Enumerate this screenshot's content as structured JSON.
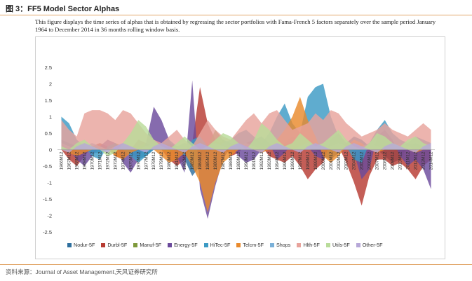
{
  "figure": {
    "label": "图 3：FF5 Model Sector Alphas",
    "description": "This figure displays the time series of alphas that is obtained by regressing the sector portfolios with Fama-French 5 factors separately over the sample period January 1964 to December 2014 in 36 months rolling window basis.",
    "source": "资料来源：Journal of Asset Management,天风证券研究所"
  },
  "chart_data": {
    "type": "area",
    "title": "",
    "xlabel": "",
    "ylabel": "",
    "ylim": [
      -2.5,
      2.5
    ],
    "yticks": [
      "2.5",
      "2",
      "1.5",
      "1",
      "0.5",
      "0",
      "-0.5",
      "-1",
      "-1.5",
      "-2",
      "-2.5"
    ],
    "x_tick_labels": [
      "1966M12",
      "1967M12",
      "1968M12",
      "1969M12",
      "1970M12",
      "1971M12",
      "1972M12",
      "1973M12",
      "1974M12",
      "1975M12",
      "1976M12",
      "1977M12",
      "1978M12",
      "1979M12",
      "1980M12",
      "1981M12",
      "1982M12",
      "1983M12",
      "1984M12",
      "1985M12",
      "1986M12",
      "1987M12",
      "1988M12",
      "1989M12",
      "1990M12",
      "1991M12",
      "1992M12",
      "1993M12",
      "1994M12",
      "1995M12",
      "1996M12",
      "1997M12",
      "1998M12",
      "1999M12",
      "2000M12",
      "2001M12",
      "2002M12",
      "2003M12",
      "2004M12",
      "2005M12",
      "2006M12",
      "2007M12",
      "2008M12",
      "2009M12",
      "2010M12",
      "2011M12",
      "2012M12",
      "2013M12",
      "2014M12"
    ],
    "legend_position": "bottom",
    "series": [
      {
        "name": "Nodur-5F",
        "color": "#2e6f9e",
        "values": [
          0.3,
          0.2,
          0.1,
          0.0,
          -0.1,
          -0.1,
          0.0,
          0.1,
          0.0,
          -0.1,
          -0.3,
          -0.2,
          0.0,
          0.1,
          0.2,
          0.1,
          -0.3,
          -0.8,
          -0.5,
          -0.1,
          0.1,
          0.3,
          0.2,
          0.1,
          0.0,
          0.3,
          0.4,
          0.2,
          0.0,
          0.2,
          0.4,
          0.3,
          0.2,
          0.0,
          -0.2,
          -0.3,
          -0.1,
          0.2,
          0.4,
          0.3,
          0.1,
          0.0,
          -0.2,
          -0.4,
          -0.3,
          0.1,
          0.2,
          0.1,
          -0.1
        ]
      },
      {
        "name": "Durbl-5F",
        "color": "#b73b32",
        "values": [
          0.0,
          -0.3,
          -0.5,
          -0.2,
          0.1,
          0.2,
          0.1,
          -0.2,
          -0.3,
          0.0,
          0.3,
          0.2,
          0.1,
          0.0,
          -0.3,
          -0.5,
          -0.3,
          0.2,
          1.9,
          0.8,
          0.3,
          0.1,
          -0.2,
          -0.1,
          0.2,
          0.3,
          0.1,
          -0.2,
          -0.3,
          -0.4,
          -0.2,
          -0.5,
          -0.9,
          -0.6,
          -0.4,
          0.3,
          0.1,
          -0.4,
          -1.0,
          -1.7,
          -0.8,
          -0.3,
          -0.3,
          -0.5,
          -0.4,
          -0.6,
          -0.9,
          -0.5,
          -0.3
        ]
      },
      {
        "name": "Manuf-5F",
        "color": "#7f9a3c",
        "values": [
          0.1,
          0.0,
          0.1,
          0.2,
          0.1,
          0.0,
          0.1,
          0.2,
          0.1,
          0.0,
          0.1,
          0.2,
          0.1,
          0.0,
          -0.1,
          0.1,
          0.2,
          0.1,
          0.0,
          0.1,
          0.6,
          0.3,
          0.1,
          0.0,
          0.1,
          0.2,
          0.1,
          0.0,
          0.1,
          0.2,
          0.1,
          0.0,
          0.1,
          0.2,
          0.1,
          0.0,
          0.1,
          0.2,
          0.1,
          0.0,
          0.1,
          0.2,
          0.1,
          0.0,
          0.1,
          0.2,
          0.1,
          0.0,
          0.1
        ]
      },
      {
        "name": "Energy-5F",
        "color": "#6b4a9c",
        "values": [
          0.2,
          0.0,
          -0.3,
          -0.5,
          -0.2,
          0.1,
          0.3,
          0.2,
          -0.4,
          -0.7,
          -0.3,
          0.2,
          1.3,
          0.9,
          0.3,
          -0.2,
          -0.7,
          2.1,
          -1.2,
          -2.1,
          -1.1,
          -0.3,
          0.1,
          -0.2,
          -0.4,
          -0.3,
          0.0,
          0.2,
          -0.3,
          -0.1,
          0.2,
          0.4,
          0.1,
          -0.2,
          -0.3,
          0.3,
          0.5,
          0.2,
          -0.1,
          -0.9,
          -0.6,
          0.4,
          0.6,
          0.3,
          -0.2,
          -0.5,
          -0.3,
          -0.6,
          -1.2
        ]
      },
      {
        "name": "HiTec-5F",
        "color": "#3c9ac4",
        "values": [
          1.0,
          0.8,
          0.3,
          0.1,
          -0.2,
          -0.3,
          0.1,
          0.2,
          0.0,
          -0.2,
          -0.4,
          -0.2,
          0.0,
          0.2,
          0.3,
          0.1,
          -0.2,
          0.3,
          0.4,
          0.1,
          0.0,
          0.2,
          0.3,
          0.5,
          0.6,
          0.4,
          0.2,
          0.5,
          1.0,
          1.4,
          0.8,
          0.5,
          1.6,
          1.9,
          2.0,
          1.0,
          0.4,
          0.1,
          -0.3,
          -0.4,
          0.2,
          0.6,
          0.9,
          0.5,
          0.3,
          0.2,
          0.4,
          0.3,
          0.2
        ]
      },
      {
        "name": "Telcm-5F",
        "color": "#e98a2c",
        "values": [
          0.0,
          -0.1,
          -0.2,
          -0.1,
          0.0,
          0.1,
          0.0,
          -0.2,
          -0.3,
          -0.1,
          0.0,
          0.1,
          0.0,
          -0.2,
          -0.4,
          -0.3,
          -0.1,
          -0.5,
          -1.0,
          -1.9,
          -1.0,
          -0.4,
          -0.2,
          0.0,
          0.1,
          0.0,
          -0.1,
          0.0,
          0.3,
          0.6,
          1.0,
          1.6,
          0.9,
          0.4,
          -0.2,
          -0.4,
          -0.2,
          0.1,
          0.3,
          0.2,
          0.0,
          -0.1,
          0.0,
          0.2,
          0.1,
          0.0,
          -0.1,
          0.0,
          0.1
        ]
      },
      {
        "name": "Shops",
        "color": "#7ab0d8",
        "values": [
          0.2,
          0.1,
          0.0,
          0.1,
          0.2,
          0.1,
          0.0,
          0.1,
          0.2,
          0.1,
          0.0,
          0.1,
          0.2,
          0.1,
          0.0,
          0.1,
          0.2,
          0.1,
          0.0,
          0.1,
          0.2,
          0.1,
          0.0,
          0.1,
          0.2,
          0.1,
          0.0,
          0.1,
          0.2,
          0.1,
          0.0,
          0.1,
          0.2,
          0.1,
          0.0,
          0.1,
          0.2,
          0.1,
          0.0,
          0.1,
          0.2,
          0.1,
          0.0,
          0.1,
          0.2,
          0.1,
          0.0,
          0.1,
          0.2
        ]
      },
      {
        "name": "Hlth-5F",
        "color": "#e8a39c",
        "values": [
          0.9,
          0.6,
          0.4,
          1.1,
          1.2,
          1.2,
          1.1,
          0.9,
          1.2,
          1.1,
          0.8,
          0.5,
          0.3,
          0.2,
          0.4,
          0.6,
          0.3,
          0.1,
          0.5,
          0.9,
          0.6,
          0.4,
          0.3,
          0.6,
          0.9,
          1.1,
          0.8,
          1.1,
          1.2,
          0.9,
          0.6,
          0.7,
          0.8,
          1.1,
          0.9,
          1.2,
          1.1,
          0.8,
          0.6,
          0.4,
          0.5,
          0.6,
          0.8,
          0.6,
          0.5,
          0.4,
          0.6,
          0.8,
          0.6
        ]
      },
      {
        "name": "Utils-5F",
        "color": "#b9dc9a",
        "values": [
          0.1,
          0.0,
          0.2,
          0.3,
          0.1,
          0.0,
          -0.2,
          -0.1,
          0.2,
          0.5,
          0.9,
          0.7,
          0.3,
          0.1,
          0.0,
          0.2,
          0.4,
          0.2,
          0.0,
          0.1,
          0.3,
          0.5,
          0.4,
          0.2,
          0.0,
          0.3,
          0.8,
          0.6,
          0.3,
          0.1,
          0.2,
          0.5,
          0.3,
          0.1,
          0.2,
          0.4,
          0.6,
          0.3,
          0.1,
          0.0,
          0.2,
          0.5,
          0.4,
          0.2,
          0.1,
          0.3,
          0.4,
          0.2,
          0.1
        ]
      },
      {
        "name": "Other-5F",
        "color": "#b7a8d8",
        "values": [
          0.0,
          -0.1,
          0.1,
          0.2,
          0.1,
          0.0,
          -0.1,
          0.1,
          0.2,
          0.1,
          0.0,
          -0.1,
          0.1,
          0.2,
          0.1,
          0.0,
          -0.1,
          0.1,
          0.2,
          0.1,
          0.0,
          -0.1,
          0.1,
          0.2,
          0.1,
          0.0,
          -0.1,
          0.1,
          0.2,
          0.1,
          0.0,
          -0.1,
          0.1,
          0.2,
          0.1,
          0.0,
          -0.1,
          0.1,
          0.2,
          0.1,
          0.0,
          -0.1,
          0.1,
          0.2,
          0.1,
          0.0,
          -0.1,
          0.1,
          0.2
        ]
      }
    ]
  }
}
